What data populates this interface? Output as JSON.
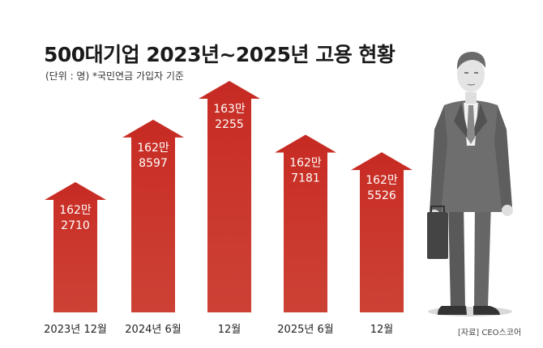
{
  "header": {
    "title": "500대기업 2023년~2025년 고용 현황",
    "subtitle": "(단위 : 명) *국민연금 가입자 기준"
  },
  "source": "[자료] CEO스코어",
  "colors": {
    "arrow_top": "#c42a22",
    "arrow_bottom": "#e84a3c",
    "label_text": "#ffffff",
    "axis_text": "#222222"
  },
  "illustration": "businessman-illustration",
  "chart_data": {
    "type": "bar",
    "title": "500대기업 2023년~2025년 고용 현황",
    "xlabel": "",
    "ylabel": "",
    "categories": [
      "2023년 12월",
      "2024년 6월",
      "12월",
      "2025년 6월",
      "12월"
    ],
    "values": [
      1622710,
      1628597,
      1632255,
      1627181,
      1625526
    ],
    "value_labels": [
      [
        "162만",
        "2710"
      ],
      [
        "162만",
        "8597"
      ],
      [
        "163만",
        "2255"
      ],
      [
        "162만",
        "7181"
      ],
      [
        "162만",
        "5526"
      ]
    ]
  }
}
